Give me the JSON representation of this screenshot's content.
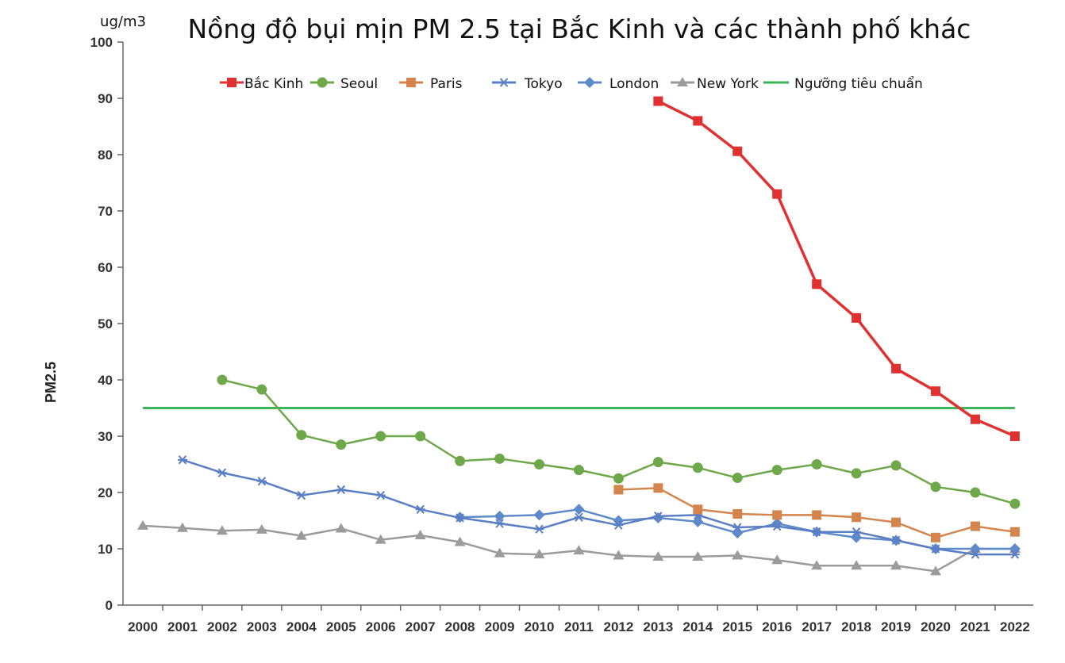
{
  "chart_data": {
    "type": "line",
    "title": "Nồng độ bụi mịn PM 2.5 tại Bắc Kinh và các thành phố khác",
    "unit": "ug/m3",
    "ylabel": "PM2.5",
    "xlabel": "",
    "ylim": [
      0,
      100
    ],
    "yticks": [
      "0",
      "10",
      "20",
      "30",
      "40",
      "50",
      "60",
      "70",
      "80",
      "90",
      "100"
    ],
    "x": [
      "2000",
      "2001",
      "2002",
      "2003",
      "2004",
      "2005",
      "2006",
      "2007",
      "2008",
      "2009",
      "2010",
      "2011",
      "2012",
      "2013",
      "2014",
      "2015",
      "2016",
      "2017",
      "2018",
      "2019",
      "2020",
      "2021",
      "2022"
    ],
    "legend_position": "top",
    "grid": false,
    "series": [
      {
        "name": "Bắc Kinh",
        "color": "#e03030",
        "marker": "square",
        "values": [
          null,
          null,
          null,
          null,
          null,
          null,
          null,
          null,
          null,
          null,
          null,
          null,
          null,
          89.5,
          86,
          80.6,
          73,
          57,
          51,
          42,
          38,
          33,
          30
        ]
      },
      {
        "name": "Seoul",
        "color": "#6fa84a",
        "marker": "circle",
        "values": [
          null,
          null,
          40,
          38.3,
          30.2,
          28.5,
          30,
          30,
          25.6,
          26,
          25,
          24,
          22.5,
          25.4,
          24.4,
          22.6,
          24,
          25,
          23.4,
          24.8,
          21,
          20,
          18
        ]
      },
      {
        "name": "Paris",
        "color": "#d4854e",
        "marker": "square",
        "values": [
          null,
          null,
          null,
          null,
          null,
          null,
          null,
          null,
          null,
          null,
          null,
          null,
          20.5,
          20.8,
          17,
          16.2,
          16,
          16,
          15.6,
          14.7,
          12,
          14,
          13
        ]
      },
      {
        "name": "Tokyo",
        "color": "#5b7fc4",
        "marker": "asterisk",
        "values": [
          null,
          25.8,
          23.5,
          22,
          19.5,
          20.5,
          19.5,
          17,
          15.5,
          14.5,
          13.5,
          15.6,
          14.2,
          15.8,
          16,
          13.8,
          14,
          13,
          13,
          11.5,
          10,
          9,
          9
        ]
      },
      {
        "name": "London",
        "color": "#5f8ac9",
        "marker": "diamond",
        "values": [
          null,
          null,
          null,
          null,
          null,
          null,
          null,
          null,
          15.6,
          15.8,
          16,
          17,
          15,
          15.5,
          14.8,
          12.8,
          14.5,
          13,
          12,
          11.5,
          10,
          10,
          10
        ]
      },
      {
        "name": "New York",
        "color": "#9b9b9b",
        "marker": "triangle",
        "values": [
          14.1,
          13.7,
          13.2,
          13.4,
          12.3,
          13.6,
          11.6,
          12.4,
          11.2,
          9.2,
          9,
          9.7,
          8.8,
          8.6,
          8.6,
          8.8,
          8,
          7,
          7,
          7,
          6,
          10,
          10
        ]
      },
      {
        "name": "Ngưỡng tiêu chuẩn",
        "color": "#3cb45a",
        "marker": "none",
        "values": [
          35,
          35,
          35,
          35,
          35,
          35,
          35,
          35,
          35,
          35,
          35,
          35,
          35,
          35,
          35,
          35,
          35,
          35,
          35,
          35,
          35,
          35,
          35
        ]
      }
    ]
  }
}
